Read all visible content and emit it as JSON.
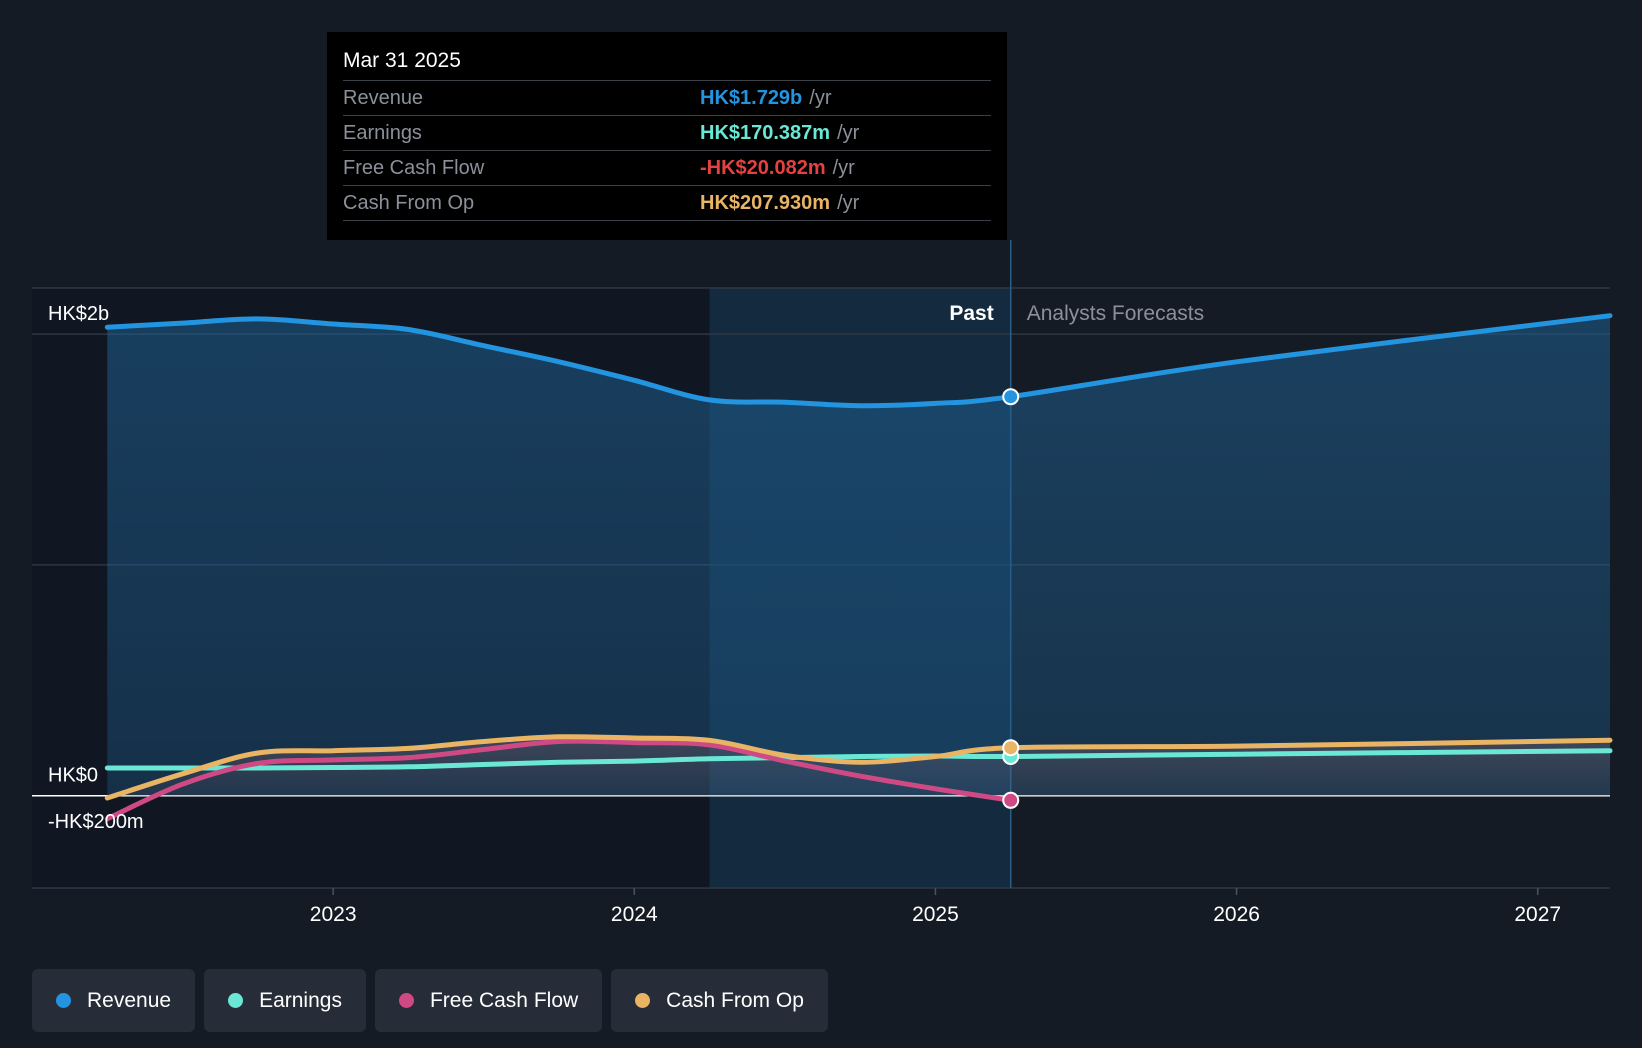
{
  "tooltip": {
    "date": "Mar 31 2025",
    "rows": [
      {
        "label": "Revenue",
        "value": "HK$1.729b",
        "unit": "/yr",
        "color": "#2394df"
      },
      {
        "label": "Earnings",
        "value": "HK$170.387m",
        "unit": "/yr",
        "color": "#6ae7d5"
      },
      {
        "label": "Free Cash Flow",
        "value": "-HK$20.082m",
        "unit": "/yr",
        "color": "#e64141"
      },
      {
        "label": "Cash From Op",
        "value": "HK$207.930m",
        "unit": "/yr",
        "color": "#e9b464"
      }
    ]
  },
  "chart_data": {
    "type": "line",
    "title": "",
    "xlabel": "",
    "ylabel": "",
    "xlim": [
      2022.0,
      2027.24
    ],
    "ylim": [
      -400,
      2200
    ],
    "y_tick_labels": [
      {
        "value": 2000,
        "label": "HK$2b"
      },
      {
        "value": 0,
        "label": "HK$0"
      },
      {
        "value": -200,
        "label": "-HK$200m"
      }
    ],
    "x_ticks": [
      {
        "value": 2023,
        "label": "2023"
      },
      {
        "value": 2024,
        "label": "2024"
      },
      {
        "value": 2025,
        "label": "2025"
      },
      {
        "value": 2026,
        "label": "2026"
      },
      {
        "value": 2027,
        "label": "2027"
      }
    ],
    "divider_x": 2025.25,
    "highlight_start_x": 2024.25,
    "past_label": "Past",
    "forecast_label": "Analysts Forecasts",
    "series": [
      {
        "name": "Revenue",
        "color": "#2394df",
        "x": [
          2022.25,
          2022.5,
          2022.75,
          2023.0,
          2023.25,
          2023.5,
          2023.75,
          2024.0,
          2024.25,
          2024.5,
          2024.75,
          2025.0,
          2025.25,
          2026.0,
          2027.24
        ],
        "y": [
          2030,
          2048,
          2066,
          2044,
          2020,
          1950,
          1880,
          1800,
          1715,
          1705,
          1690,
          1700,
          1729,
          1880,
          2080
        ],
        "forecast_from_index": 12
      },
      {
        "name": "Earnings",
        "color": "#6ae7d5",
        "x": [
          2022.25,
          2022.5,
          2022.75,
          2023.0,
          2023.25,
          2023.5,
          2023.75,
          2024.0,
          2024.25,
          2024.5,
          2024.75,
          2025.0,
          2025.25,
          2026.0,
          2027.24
        ],
        "y": [
          120,
          120,
          120,
          122,
          125,
          135,
          145,
          150,
          160,
          165,
          170,
          172,
          170,
          180,
          195
        ],
        "forecast_from_index": 12
      },
      {
        "name": "Free Cash Flow",
        "color": "#cf4a85",
        "x": [
          2022.25,
          2022.5,
          2022.75,
          2023.0,
          2023.25,
          2023.5,
          2023.75,
          2024.0,
          2024.25,
          2024.5,
          2024.75,
          2025.0,
          2025.25
        ],
        "y": [
          -100,
          50,
          140,
          155,
          165,
          200,
          235,
          230,
          220,
          150,
          85,
          30,
          -20
        ],
        "forecast_from_index": null
      },
      {
        "name": "Cash From Op",
        "color": "#e9b464",
        "x": [
          2022.25,
          2022.5,
          2022.75,
          2023.0,
          2023.25,
          2023.5,
          2023.75,
          2024.0,
          2024.25,
          2024.5,
          2024.75,
          2025.0,
          2025.25,
          2026.0,
          2027.24
        ],
        "y": [
          -10,
          95,
          185,
          195,
          205,
          235,
          255,
          250,
          240,
          175,
          145,
          170,
          208,
          215,
          240
        ],
        "forecast_from_index": 12
      }
    ]
  },
  "legend": [
    {
      "label": "Revenue",
      "color": "#2394df"
    },
    {
      "label": "Earnings",
      "color": "#6ae7d5"
    },
    {
      "label": "Free Cash Flow",
      "color": "#cf4a85"
    },
    {
      "label": "Cash From Op",
      "color": "#e9b464"
    }
  ]
}
